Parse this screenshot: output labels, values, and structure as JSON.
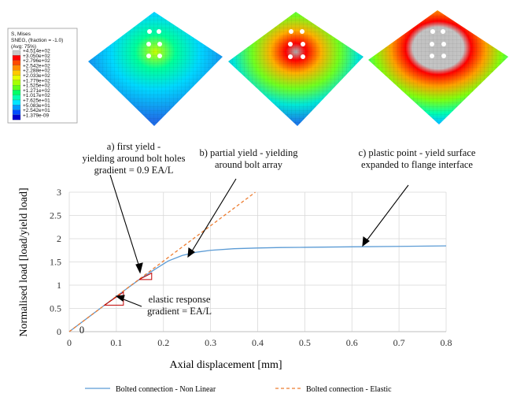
{
  "colorbar": {
    "title_lines": [
      "S, Mises",
      "SNEG, (fraction = -1.0)",
      "(Avg: 75%)"
    ],
    "labels": [
      "+4.514e+02",
      "+3.050e+02",
      "+2.796e+02",
      "+2.542e+02",
      "+2.288e+02",
      "+2.033e+02",
      "+1.779e+02",
      "+1.525e+02",
      "+1.271e+02",
      "+1.017e+02",
      "+7.625e+01",
      "+5.083e+01",
      "+2.542e+01",
      "+1.379e-09"
    ],
    "colors": [
      "#c8c8c8",
      "#ff0000",
      "#ff4a00",
      "#ff8c00",
      "#ffc800",
      "#e6ff00",
      "#a6ff00",
      "#5fff1a",
      "#00ff66",
      "#00ffb3",
      "#00e6ff",
      "#0099ff",
      "#004dff",
      "#0000cc"
    ]
  },
  "annotations": {
    "a": [
      "a) first yield -",
      "yielding around bolt holes",
      "gradient = 0.9 EA/L"
    ],
    "b": [
      "b) partial yield - yielding",
      "around bolt array"
    ],
    "c": [
      "c) plastic point - yield surface",
      "expanded to flange interface"
    ],
    "elastic": [
      "elastic response",
      "gradient = EA/L"
    ],
    "origin": "0"
  },
  "chart_data": {
    "type": "line",
    "xlabel": "Axial displacement [mm]",
    "ylabel": "Normalised load [load/yield load]",
    "xlim": [
      0,
      0.8
    ],
    "ylim": [
      0,
      3
    ],
    "xticks": [
      "0",
      "0.1",
      "0.2",
      "0.3",
      "0.4",
      "0.5",
      "0.6",
      "0.7",
      "0.8"
    ],
    "yticks": [
      "0",
      "0.5",
      "1",
      "1.5",
      "2",
      "2.5",
      "3"
    ],
    "grid": true,
    "legend_position": "bottom",
    "series": [
      {
        "name": "Bolted connection - Non Linear",
        "color": "#5b9bd5",
        "style": "solid",
        "x": [
          0,
          0.05,
          0.1,
          0.15,
          0.18,
          0.21,
          0.24,
          0.27,
          0.3,
          0.35,
          0.4,
          0.45,
          0.5,
          0.6,
          0.7,
          0.8
        ],
        "y": [
          0,
          0.38,
          0.76,
          1.13,
          1.33,
          1.52,
          1.64,
          1.71,
          1.75,
          1.785,
          1.8,
          1.81,
          1.815,
          1.825,
          1.835,
          1.845
        ]
      },
      {
        "name": "Bolted connection - Elastic",
        "color": "#ed7d31",
        "style": "dashed",
        "x": [
          0,
          0.395
        ],
        "y": [
          0,
          3.0
        ]
      }
    ]
  }
}
